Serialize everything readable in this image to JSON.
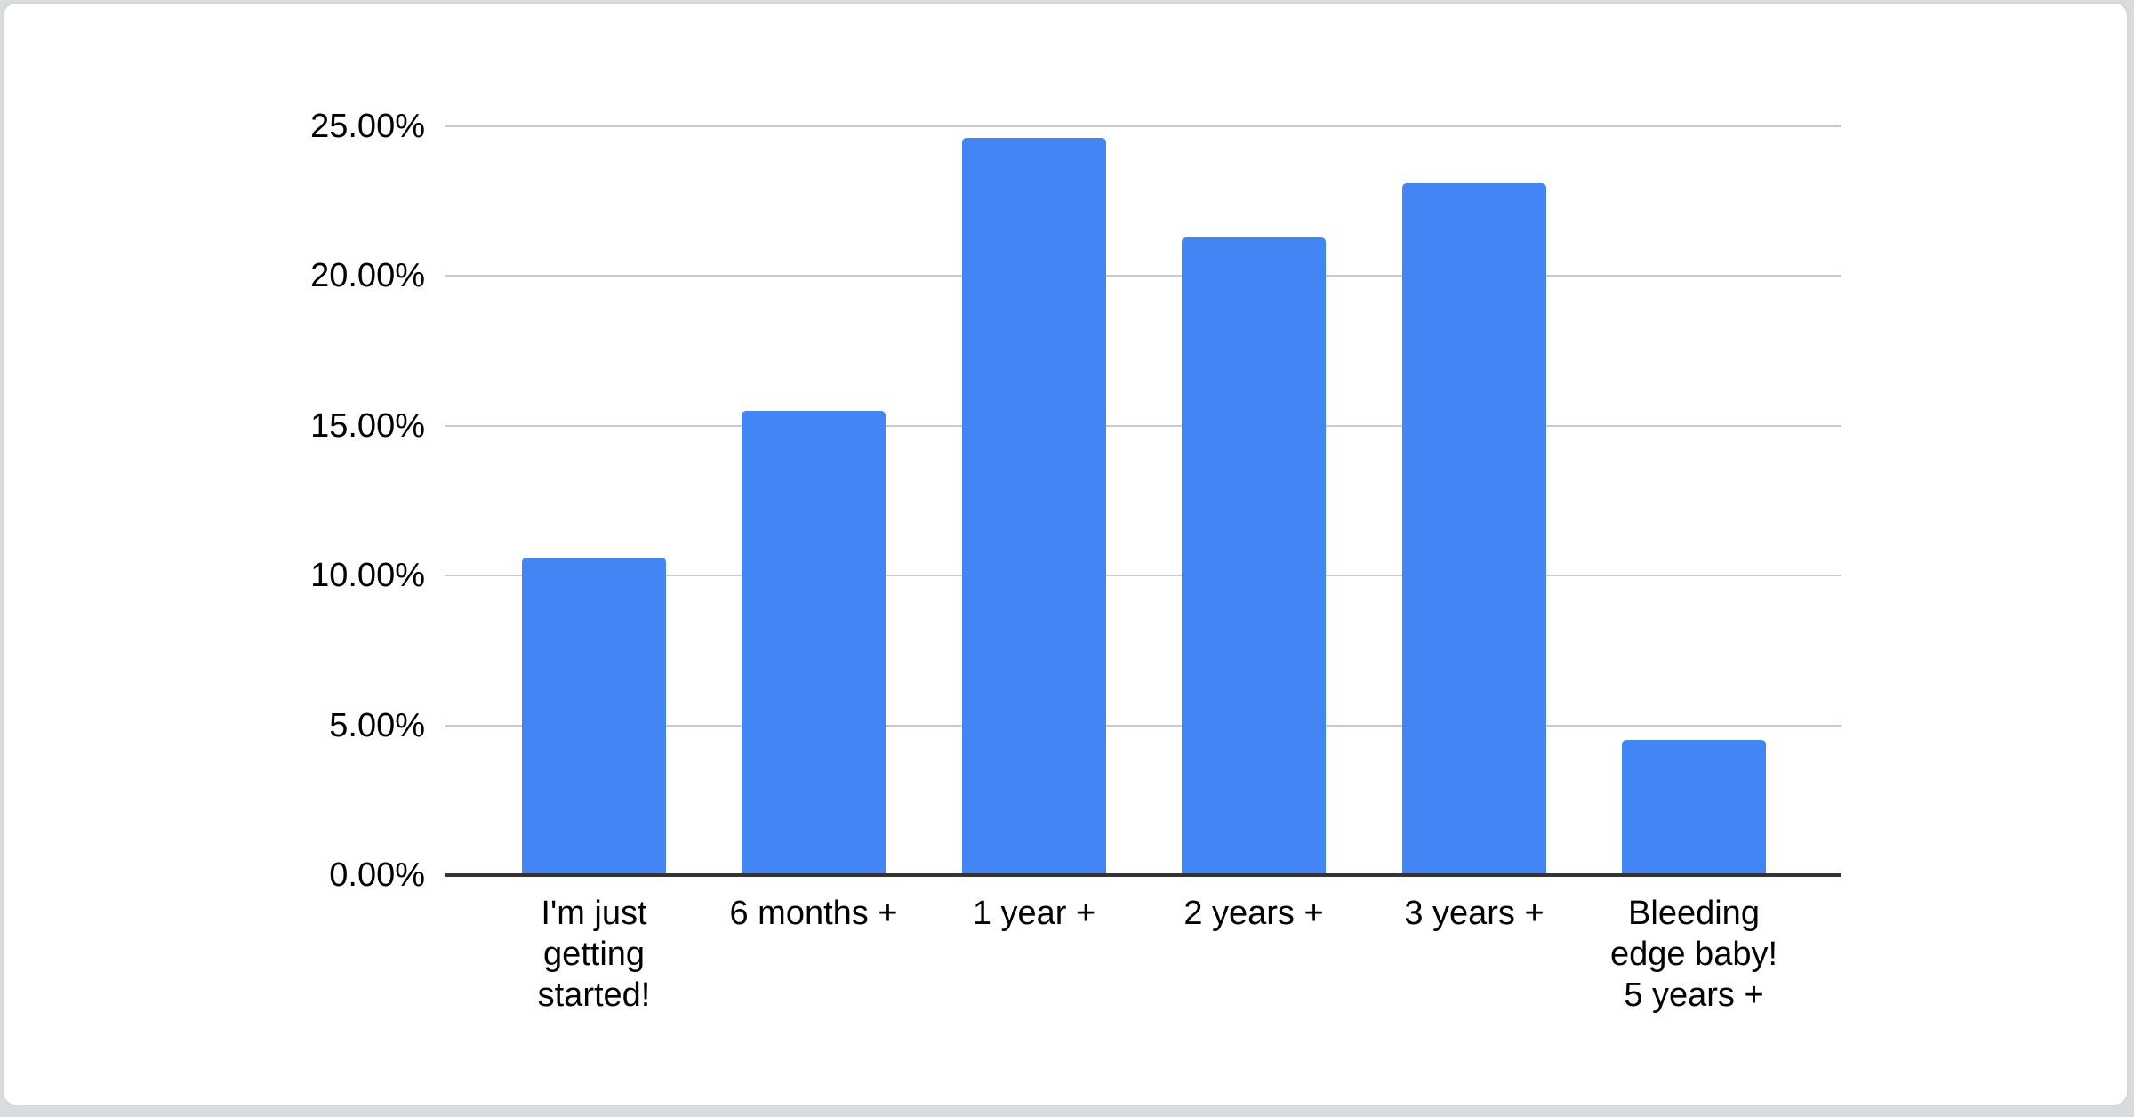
{
  "page": {
    "background_color": "#d8dcdf",
    "card_background": "#ffffff",
    "card_border_color": "#d3d7da"
  },
  "chart_data": {
    "type": "bar",
    "title": "",
    "xlabel": "",
    "ylabel": "",
    "legend": "none",
    "grid": true,
    "orientation": "vertical",
    "bar_color": "#4285f4",
    "gridline_color": "#cbcbcb",
    "baseline_color": "#333333",
    "label_color": "#000000",
    "ylim": [
      0,
      25
    ],
    "categories": [
      "I'm just getting started!",
      "6 months +",
      "1 year +",
      "2 years +",
      "3 years +",
      "Bleeding edge baby! 5 years +"
    ],
    "category_lines": [
      [
        "I'm just",
        "getting",
        "started!"
      ],
      [
        "6 months +"
      ],
      [
        "1 year +"
      ],
      [
        "2 years +"
      ],
      [
        "3 years +"
      ],
      [
        "Bleeding",
        "edge baby!",
        "5 years +"
      ]
    ],
    "values": [
      10.6,
      15.5,
      24.6,
      21.3,
      23.1,
      4.5
    ],
    "value_unit": "%",
    "y_ticks": [
      {
        "label": "0.00%",
        "value": 0
      },
      {
        "label": "5.00%",
        "value": 5
      },
      {
        "label": "10.00%",
        "value": 10
      },
      {
        "label": "15.00%",
        "value": 15
      },
      {
        "label": "20.00%",
        "value": 20
      },
      {
        "label": "25.00%",
        "value": 25
      }
    ]
  }
}
